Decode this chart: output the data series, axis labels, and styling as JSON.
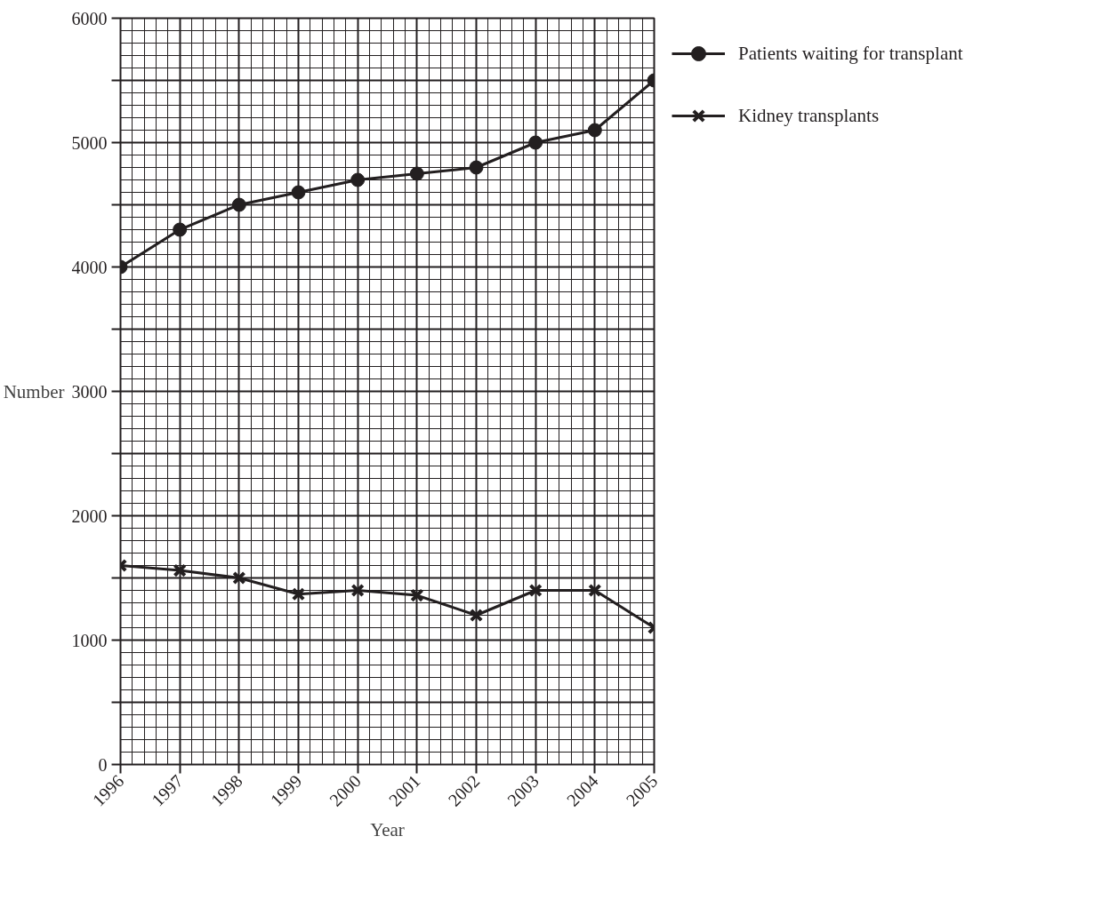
{
  "chart_data": {
    "type": "line",
    "xlabel": "Year",
    "ylabel": "Number",
    "x": [
      1996,
      1997,
      1998,
      1999,
      2000,
      2001,
      2002,
      2003,
      2004,
      2005
    ],
    "xlim": [
      1996,
      2005
    ],
    "xticks": [
      1996,
      1997,
      1998,
      1999,
      2000,
      2001,
      2002,
      2003,
      2004,
      2005
    ],
    "ylim": [
      0,
      6000
    ],
    "yticks": [
      0,
      {
        "value": 500,
        "label": null
      },
      1000,
      {
        "value": 1500,
        "label": null
      },
      2000,
      {
        "value": 2500,
        "label": null
      },
      3000,
      {
        "value": 3500,
        "label": null
      },
      4000,
      {
        "value": 4500,
        "label": null
      },
      5000,
      {
        "value": 5500,
        "label": null
      },
      6000
    ],
    "grid": true,
    "legend": "right",
    "line_style": "solid",
    "series": [
      {
        "name": "Patients waiting for transplant",
        "color": "#231f20",
        "marker": "circle",
        "values": [
          4000,
          4300,
          4500,
          4600,
          4700,
          4750,
          4800,
          5000,
          5100,
          5500
        ]
      },
      {
        "name": "Kidney transplants",
        "color": "#231f20",
        "marker": "cross",
        "values": [
          1600,
          1560,
          1500,
          1370,
          1400,
          1360,
          1200,
          1400,
          1400,
          1100
        ]
      }
    ]
  }
}
